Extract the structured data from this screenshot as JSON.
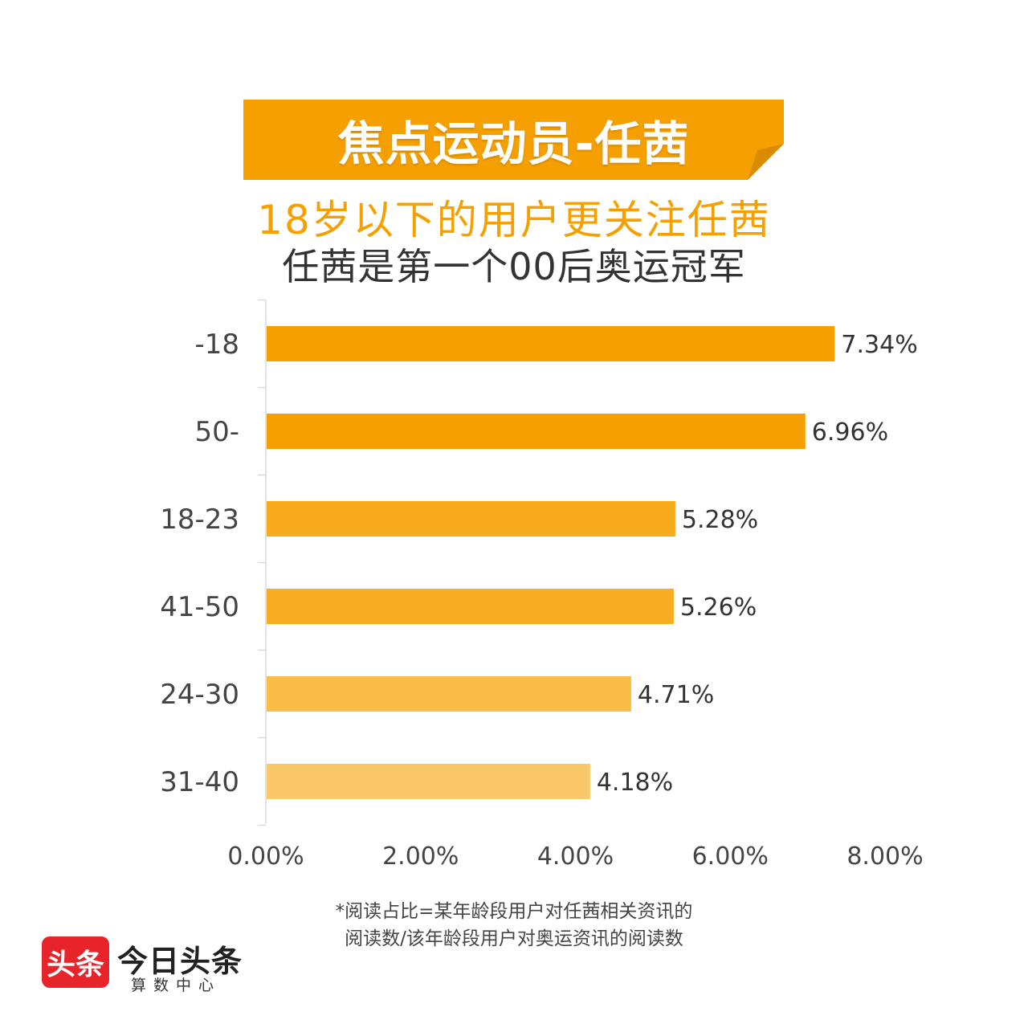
{
  "banner": {
    "title": "焦点运动员-任茜",
    "color": "#F5A000"
  },
  "subtitle": "18岁以下的用户更关注任茜",
  "subtitle2": "任茜是第一个00后奥运冠军",
  "chart_data": {
    "type": "bar",
    "orientation": "horizontal",
    "categories": [
      "-18",
      "50-",
      "18-23",
      "41-50",
      "24-30",
      "31-40"
    ],
    "values": [
      7.34,
      6.96,
      5.28,
      5.26,
      4.71,
      4.18
    ],
    "value_labels": [
      "7.34%",
      "6.96%",
      "5.28%",
      "5.26%",
      "4.71%",
      "4.18%"
    ],
    "bar_colors": [
      "#F5A000",
      "#F5A000",
      "#F7AA1A",
      "#F7AD22",
      "#F9BC45",
      "#FBC869"
    ],
    "xlim": [
      0,
      8
    ],
    "x_ticks": [
      "0.00%",
      "2.00%",
      "4.00%",
      "6.00%",
      "8.00%"
    ],
    "grid": false
  },
  "footnote": {
    "line1": "*阅读占比=某年龄段用户对任茜相关资讯的",
    "line2": "阅读数/该年龄段用户对奥运资讯的阅读数"
  },
  "logo": {
    "mark": "头条",
    "name": "今日头条",
    "sub": "算数中心",
    "color": "#E8242A"
  }
}
